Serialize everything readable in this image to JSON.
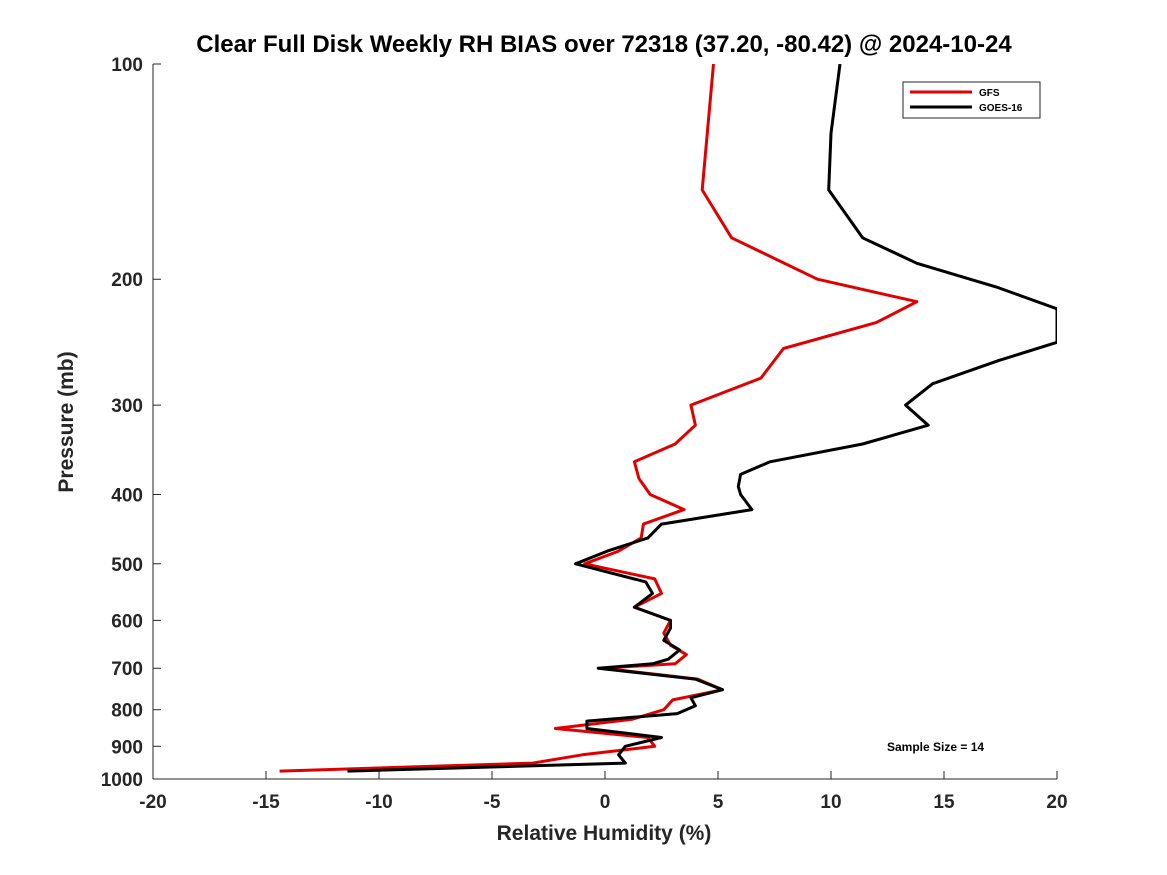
{
  "colors": {
    "GFS": "#e00000",
    "GOES-16": "#000000"
  },
  "chart_data": {
    "type": "line",
    "title": "Clear Full Disk Weekly RH BIAS over 72318 (37.20, -80.42) @ 2024-10-24",
    "xlabel": "Relative Humidity (%)",
    "ylabel": "Pressure (mb)",
    "xlim": [
      -20,
      20
    ],
    "ylim": [
      100,
      1000
    ],
    "yscale": "log",
    "y_reversed": true,
    "x_ticks": [
      -20,
      -15,
      -10,
      -5,
      0,
      5,
      10,
      15,
      20
    ],
    "x_tick_labels": [
      "-20",
      "-15",
      "-10",
      "-5",
      "0",
      "5",
      "10",
      "15",
      "20"
    ],
    "y_ticks": [
      100,
      200,
      300,
      400,
      500,
      600,
      700,
      800,
      900,
      1000
    ],
    "y_tick_labels": [
      "100",
      "200",
      "300",
      "400",
      "500",
      "600",
      "700",
      "800",
      "900",
      "1000"
    ],
    "grid": false,
    "legend": {
      "placement": "top-right",
      "entries": [
        "GFS",
        "GOES-16"
      ]
    },
    "annotation": "Sample Size = 14",
    "series": [
      {
        "name": "GFS",
        "points": [
          [
            4.8,
            100
          ],
          [
            4.3,
            150
          ],
          [
            5.6,
            175
          ],
          [
            9.4,
            200
          ],
          [
            13.8,
            215
          ],
          [
            12.0,
            230
          ],
          [
            7.9,
            250
          ],
          [
            6.9,
            275
          ],
          [
            3.8,
            300
          ],
          [
            4.0,
            320
          ],
          [
            3.1,
            340
          ],
          [
            1.3,
            360
          ],
          [
            1.5,
            380
          ],
          [
            2.0,
            400
          ],
          [
            3.5,
            420
          ],
          [
            1.7,
            440
          ],
          [
            1.6,
            460
          ],
          [
            0.6,
            480
          ],
          [
            -0.9,
            500
          ],
          [
            2.2,
            525
          ],
          [
            2.5,
            550
          ],
          [
            1.3,
            575
          ],
          [
            2.9,
            600
          ],
          [
            2.6,
            625
          ],
          [
            2.9,
            650
          ],
          [
            3.6,
            670
          ],
          [
            3.1,
            690
          ],
          [
            -0.1,
            700
          ],
          [
            4.1,
            725
          ],
          [
            5.2,
            750
          ],
          [
            3.0,
            775
          ],
          [
            2.6,
            800
          ],
          [
            1.2,
            825
          ],
          [
            -2.2,
            850
          ],
          [
            1.9,
            875
          ],
          [
            2.2,
            900
          ],
          [
            -1.0,
            925
          ],
          [
            -3.2,
            950
          ],
          [
            -14.4,
            975
          ]
        ]
      },
      {
        "name": "GOES-16",
        "points": [
          [
            10.4,
            100
          ],
          [
            10.0,
            125
          ],
          [
            9.9,
            150
          ],
          [
            11.4,
            175
          ],
          [
            13.8,
            190
          ],
          [
            17.3,
            205
          ],
          [
            20.0,
            220
          ],
          [
            20.0,
            245
          ],
          [
            17.4,
            260
          ],
          [
            14.5,
            280
          ],
          [
            13.3,
            300
          ],
          [
            14.3,
            320
          ],
          [
            11.4,
            340
          ],
          [
            7.3,
            360
          ],
          [
            6.0,
            375
          ],
          [
            5.9,
            390
          ],
          [
            6.0,
            400
          ],
          [
            6.5,
            420
          ],
          [
            2.5,
            440
          ],
          [
            1.9,
            460
          ],
          [
            0.1,
            480
          ],
          [
            -1.3,
            500
          ],
          [
            1.8,
            530
          ],
          [
            2.1,
            550
          ],
          [
            1.3,
            575
          ],
          [
            2.9,
            600
          ],
          [
            2.9,
            615
          ],
          [
            2.6,
            640
          ],
          [
            3.3,
            660
          ],
          [
            2.8,
            680
          ],
          [
            2.1,
            690
          ],
          [
            -0.3,
            700
          ],
          [
            4.0,
            725
          ],
          [
            5.2,
            750
          ],
          [
            3.8,
            770
          ],
          [
            4.0,
            790
          ],
          [
            3.2,
            810
          ],
          [
            -0.8,
            830
          ],
          [
            -0.8,
            850
          ],
          [
            2.5,
            875
          ],
          [
            0.9,
            900
          ],
          [
            0.6,
            925
          ],
          [
            0.9,
            950
          ],
          [
            -11.4,
            975
          ]
        ]
      }
    ]
  }
}
